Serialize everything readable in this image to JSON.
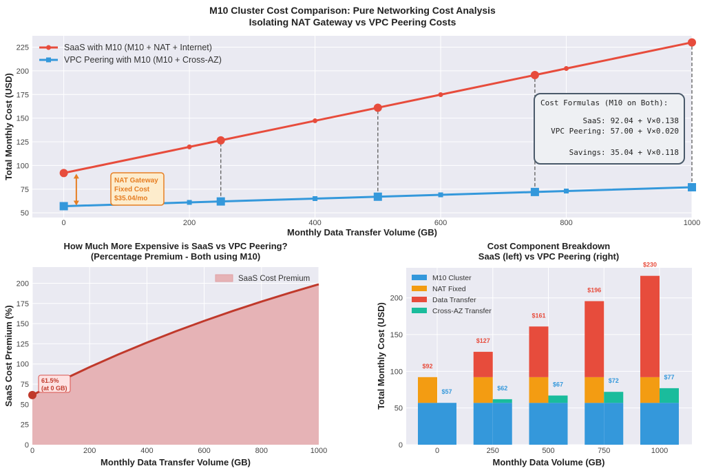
{
  "figure_title": [
    "M10 Cluster Cost Comparison: Pure Networking Cost Analysis",
    "Isolating NAT Gateway vs VPC Peering Costs"
  ],
  "colors": {
    "saas": "#e74c3c",
    "vpc": "#3498db",
    "nat": "#f39c12",
    "cross_az": "#1abc9c",
    "annotation": "#e67e22",
    "premium_line": "#c0392b",
    "premium_fill": "#e6b3b6",
    "plot_bg": "#eaeaf2"
  },
  "chart_data": [
    {
      "type": "line",
      "title": "",
      "xlabel": "Monthly Data Transfer Volume (GB)",
      "ylabel": "Total Monthly Cost (USD)",
      "xlim": [
        -50,
        1000
      ],
      "ylim": [
        45,
        237
      ],
      "xticks": [
        0,
        200,
        400,
        600,
        800,
        1000
      ],
      "yticks": [
        50,
        75,
        100,
        125,
        150,
        175,
        200,
        225
      ],
      "grid": true,
      "legend_position": "top-left",
      "x": [
        0,
        200,
        250,
        400,
        500,
        600,
        750,
        800,
        1000
      ],
      "highlight_x": [
        0,
        250,
        500,
        750,
        1000
      ],
      "series": [
        {
          "name": "SaaS with M10 (M10 + NAT + Internet)",
          "marker": "circle",
          "values": [
            92.04,
            119.64,
            126.54,
            147.24,
            161.04,
            174.84,
            195.54,
            202.44,
            230.04
          ]
        },
        {
          "name": "VPC Peering with M10 (M10 + Cross-AZ)",
          "marker": "square",
          "values": [
            57.0,
            61.0,
            62.0,
            65.0,
            67.0,
            69.0,
            72.0,
            73.0,
            77.0
          ]
        }
      ],
      "annotation": {
        "lines": [
          "NAT Gateway",
          "Fixed Cost",
          "$35.04/mo"
        ],
        "arrow_x": 20,
        "arrow_from": 57,
        "arrow_to": 92.04
      },
      "formula_box": {
        "title": "Cost Formulas (M10 on Both):",
        "lines": [
          {
            "label": "SaaS:",
            "formula": "92.04 + V×0.138"
          },
          {
            "label": "VPC Peering:",
            "formula": "57.00 + V×0.020"
          },
          {
            "label": "Savings:",
            "formula": "35.04 + V×0.118"
          }
        ]
      }
    },
    {
      "type": "area",
      "title": [
        "How Much More Expensive is SaaS vs VPC Peering?",
        "(Percentage Premium - Both using M10)"
      ],
      "xlabel": "Monthly Data Transfer Volume (GB)",
      "ylabel": "SaaS Cost Premium (%)",
      "xlim": [
        0,
        1000
      ],
      "ylim": [
        0,
        220
      ],
      "xticks": [
        0,
        200,
        400,
        600,
        800,
        1000
      ],
      "yticks": [
        0,
        25,
        50,
        75,
        100,
        125,
        150,
        175,
        200
      ],
      "grid": true,
      "legend_position": "top-right",
      "x": [
        0,
        100,
        200,
        300,
        400,
        500,
        600,
        700,
        800,
        900,
        1000
      ],
      "series": [
        {
          "name": "SaaS Cost Premium",
          "values": [
            61.47,
            79.39,
            96.13,
            111.81,
            126.52,
            140.36,
            153.39,
            165.69,
            177.32,
            188.32,
            198.75
          ]
        }
      ],
      "annotation": {
        "lines": [
          "61.5%",
          "(at 0 GB)"
        ],
        "x": 0,
        "y": 61.5
      }
    },
    {
      "type": "bar",
      "stacked": true,
      "title": [
        "Cost Component Breakdown",
        "SaaS (left) vs VPC Peering (right)"
      ],
      "xlabel": "Monthly Data Volume (GB)",
      "ylabel": "Total Monthly Cost (USD)",
      "ylim": [
        0,
        241
      ],
      "yticks": [
        0,
        50,
        100,
        150,
        200
      ],
      "grid": true,
      "legend_position": "top-left",
      "categories": [
        "0",
        "250",
        "500",
        "750",
        "1000"
      ],
      "legend": [
        "M10 Cluster",
        "NAT Fixed",
        "Data Transfer",
        "Cross-AZ Transfer"
      ],
      "saas": {
        "m10_cluster": [
          57,
          57,
          57,
          57,
          57
        ],
        "nat_fixed": [
          35.04,
          35.04,
          35.04,
          35.04,
          35.04
        ],
        "data_transfer": [
          0,
          34.5,
          69,
          103.5,
          138
        ],
        "total_labels": [
          "$92",
          "$127",
          "$161",
          "$196",
          "$230"
        ]
      },
      "vpc": {
        "m10_cluster": [
          57,
          57,
          57,
          57,
          57
        ],
        "cross_az_transfer": [
          0,
          5,
          10,
          15,
          20
        ],
        "total_labels": [
          "$57",
          "$62",
          "$67",
          "$72",
          "$77"
        ]
      }
    }
  ]
}
